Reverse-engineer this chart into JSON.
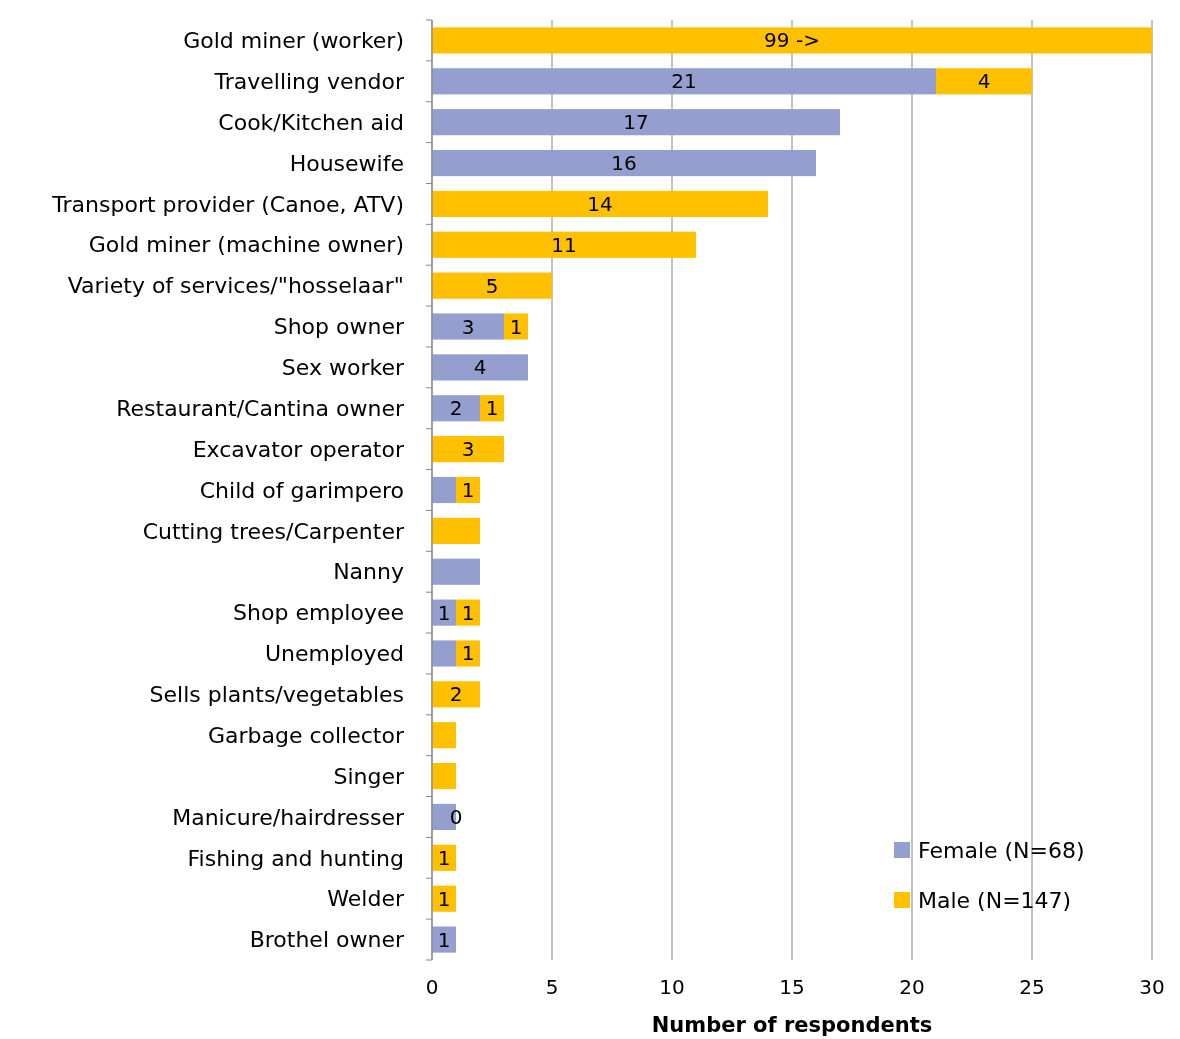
{
  "chart_data": {
    "type": "bar",
    "orientation": "horizontal",
    "stacked": true,
    "xlabel": "Number of respondents",
    "categories": [
      "Gold miner (worker)",
      "Travelling vendor",
      "Cook/Kitchen aid",
      "Housewife",
      "Transport provider (Canoe, ATV)",
      "Gold miner (machine owner)",
      "Variety of services/\"hosselaar\"",
      "Shop owner",
      "Sex worker",
      "Restaurant/Cantina owner",
      "Excavator operator",
      "Child of garimpero",
      "Cutting trees/Carpenter",
      "Nanny",
      "Shop employee",
      "Unemployed",
      "Sells plants/vegetables",
      "Garbage collector",
      "Singer",
      "Manicure/hairdresser",
      "Fishing and hunting",
      "Welder",
      "Brothel owner"
    ],
    "series": [
      {
        "name": "Female (N=68)",
        "color": "#959fcf",
        "values": [
          0,
          21,
          17,
          16,
          0,
          0,
          0,
          3,
          4,
          2,
          0,
          1,
          0,
          2,
          1,
          1,
          0,
          0,
          0,
          1,
          0,
          0,
          1
        ],
        "value_labels": [
          null,
          "21",
          "17",
          "16",
          null,
          null,
          null,
          "3",
          "4",
          "2",
          null,
          null,
          null,
          null,
          "1",
          null,
          null,
          null,
          null,
          null,
          null,
          null,
          "1"
        ]
      },
      {
        "name": "Male (N=147)",
        "color": "#ffc000",
        "values": [
          30,
          4,
          0,
          0,
          14,
          11,
          5,
          1,
          0,
          1,
          3,
          1,
          2,
          0,
          1,
          1,
          2,
          1,
          1,
          0,
          1,
          1,
          0
        ],
        "value_labels": [
          "99 ->",
          "4",
          null,
          null,
          "14",
          "11",
          "5",
          "1",
          null,
          "1",
          "3",
          "1",
          null,
          null,
          "1",
          "1",
          "2",
          null,
          null,
          "0",
          "1",
          "1",
          null
        ]
      }
    ],
    "xlim": [
      0,
      30
    ],
    "xticks": [
      0,
      5,
      10,
      15,
      20,
      25,
      30
    ],
    "grid": "x",
    "legend": "bottom right"
  }
}
